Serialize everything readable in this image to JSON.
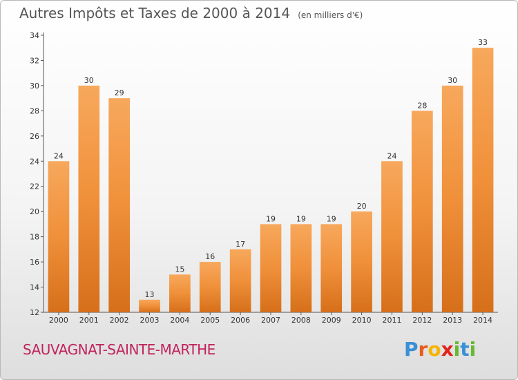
{
  "chart_data": {
    "type": "bar",
    "title": "Autres Impôts et Taxes de 2000 à 2014",
    "subtitle": "(en milliers d'€)",
    "categories": [
      "2000",
      "2001",
      "2002",
      "2003",
      "2004",
      "2005",
      "2006",
      "2007",
      "2008",
      "2009",
      "2010",
      "2011",
      "2012",
      "2013",
      "2014"
    ],
    "values": [
      24,
      30,
      29,
      13,
      15,
      16,
      17,
      19,
      19,
      19,
      20,
      24,
      28,
      30,
      33
    ],
    "ylim": [
      12,
      34
    ],
    "yticks": [
      12,
      14,
      16,
      18,
      20,
      22,
      24,
      26,
      28,
      30,
      32,
      34
    ],
    "xlabel": "",
    "ylabel": "",
    "grid": false,
    "legend": "none",
    "bar_color": "#f0903a",
    "bar_color_light": "#f7a85c",
    "bar_color_dark": "#d66f1a"
  },
  "footer": {
    "commune": "SAUVAGNAT-SAINTE-MARTHE",
    "commune_color": "#c0245c",
    "brand": [
      "P",
      "r",
      "o",
      "x",
      "i",
      "t",
      "i"
    ],
    "brand_colors": [
      "#3a8fd6",
      "#e85a1e",
      "#f4b400",
      "#e2231a",
      "#66b82e",
      "#3a8fd6",
      "#66b82e"
    ]
  }
}
